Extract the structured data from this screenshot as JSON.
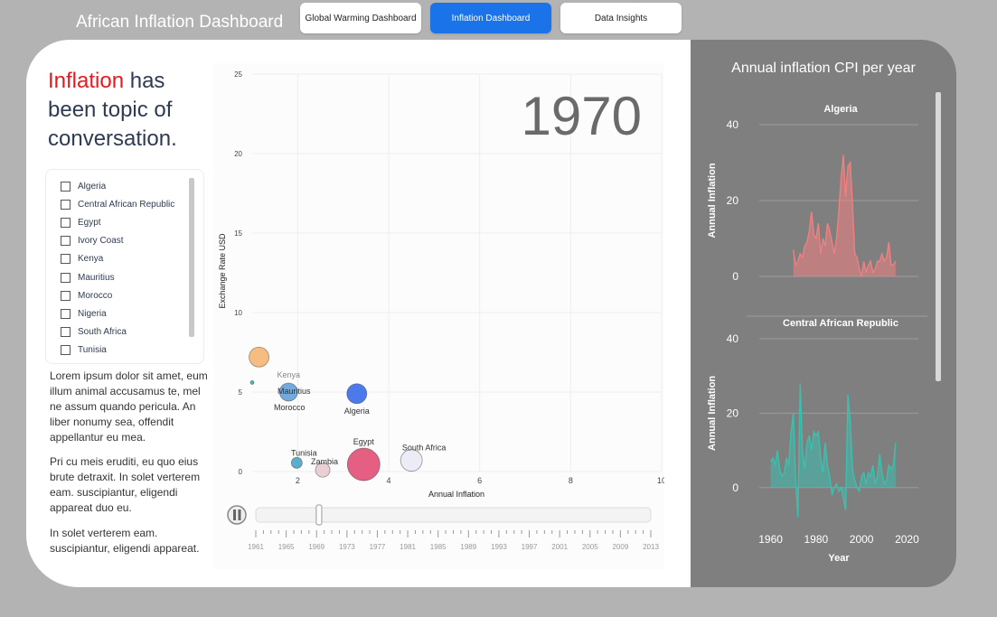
{
  "app_title": "African Inflation Dashboard",
  "nav": [
    {
      "label": "Global Warming Dashboard"
    },
    {
      "label": "Inflation Dashboard"
    },
    {
      "label": "Data Insights"
    }
  ],
  "headline": {
    "highlight": "Inflation",
    "rest": " has been topic of conversation."
  },
  "countries": [
    "Algeria",
    "Central African Republic",
    "Egypt",
    "Ivory Coast",
    "Kenya",
    "Mauritius",
    "Morocco",
    "Nigeria",
    "South Africa",
    "Tunisia"
  ],
  "paragraphs": [
    "Lorem ipsum dolor sit amet, eum illum animal accusamus te, mel ne assum quando pericula. An liber nonumy sea, offendit appellantur eu mea.",
    "Pri cu meis eruditi, eu quo eius brute detraxit. In solet verterem eam. suscipiantur, eligendi appareat duo eu.",
    "In solet verterem eam. suscipiantur, eligendi appareat."
  ],
  "chart_data": [
    {
      "type": "scatter",
      "frame_label": "1970",
      "xlabel": "Annual Inflation",
      "ylabel": "Exchange Rate USD",
      "xlim": [
        1,
        10
      ],
      "ylim": [
        0,
        25
      ],
      "xticks": [
        2,
        4,
        6,
        8,
        10
      ],
      "yticks": [
        0,
        5,
        10,
        15,
        20,
        25
      ],
      "points": [
        {
          "name": "",
          "x": 1.15,
          "y": 7.2,
          "size": 11,
          "color": "#f5b26b"
        },
        {
          "name": "",
          "x": 1.0,
          "y": 5.6,
          "size": 2,
          "color": "#2bb39c"
        },
        {
          "name": "Kenya",
          "x": 1.8,
          "y": 5.0,
          "size": 0,
          "color": "#999999"
        },
        {
          "name": "Mauritius",
          "x": 1.8,
          "y": 5.0,
          "size": 10,
          "color": "#5b9bd5"
        },
        {
          "name": "Morocco",
          "x": 1.8,
          "y": 5.0,
          "size": 0,
          "color": "#4a90d9"
        },
        {
          "name": "Algeria",
          "x": 3.3,
          "y": 4.9,
          "size": 11,
          "color": "#2d63e6"
        },
        {
          "name": "Tunisia",
          "x": 1.98,
          "y": 0.55,
          "size": 6,
          "color": "#3fa0c4"
        },
        {
          "name": "Zambia",
          "x": 2.55,
          "y": 0.1,
          "size": 8,
          "color": "#e4c8cc"
        },
        {
          "name": "Egypt",
          "x": 3.45,
          "y": 0.45,
          "size": 18,
          "color": "#e0436d"
        },
        {
          "name": "South Africa",
          "x": 4.5,
          "y": 0.7,
          "size": 12,
          "color": "#e7e9f3"
        }
      ]
    },
    {
      "type": "area",
      "title": "Algeria",
      "xlabel": "Year",
      "ylabel": "Annual Inflation",
      "xlim": [
        1955,
        2025
      ],
      "ylim": [
        0,
        40
      ],
      "yticks": [
        0,
        20,
        40
      ],
      "color": "#f08080",
      "x": [
        1970,
        1971,
        1972,
        1973,
        1974,
        1975,
        1976,
        1977,
        1978,
        1979,
        1980,
        1981,
        1982,
        1983,
        1984,
        1985,
        1986,
        1987,
        1988,
        1989,
        1990,
        1991,
        1992,
        1993,
        1994,
        1995,
        1996,
        1997,
        1998,
        1999,
        2000,
        2001,
        2002,
        2003,
        2004,
        2005,
        2006,
        2007,
        2008,
        2009,
        2010,
        2011,
        2012,
        2013,
        2014,
        2015
      ],
      "values": [
        7,
        3,
        4,
        6,
        5,
        8,
        9,
        12,
        17,
        11,
        10,
        14,
        6,
        10,
        8,
        14,
        12,
        9,
        6,
        10,
        17,
        26,
        32,
        21,
        29,
        30,
        19,
        6,
        5,
        2,
        0,
        4,
        1,
        3,
        4,
        1,
        2,
        4,
        4,
        6,
        4,
        5,
        9,
        3,
        3,
        4
      ]
    },
    {
      "type": "area",
      "title": "Central African Republic",
      "xlabel": "Year",
      "ylabel": "Annual Inflation",
      "xlim": [
        1955,
        2025
      ],
      "ylim": [
        -10,
        40
      ],
      "yticks": [
        0,
        20,
        40
      ],
      "xticks": [
        1960,
        1980,
        2000,
        2020
      ],
      "color": "#3dbfae",
      "x": [
        1960,
        1961,
        1962,
        1963,
        1964,
        1965,
        1966,
        1967,
        1968,
        1969,
        1970,
        1971,
        1972,
        1973,
        1974,
        1975,
        1976,
        1977,
        1978,
        1979,
        1980,
        1981,
        1982,
        1983,
        1984,
        1985,
        1986,
        1987,
        1988,
        1989,
        1990,
        1991,
        1992,
        1993,
        1994,
        1995,
        1996,
        1997,
        1998,
        1999,
        2000,
        2001,
        2002,
        2003,
        2004,
        2005,
        2006,
        2007,
        2008,
        2009,
        2010,
        2011,
        2012,
        2013,
        2014,
        2015
      ],
      "values": [
        7,
        8,
        6,
        10,
        5,
        3,
        4,
        8,
        6,
        15,
        20,
        2,
        -8,
        28,
        10,
        5,
        12,
        14,
        10,
        15,
        14,
        15,
        8,
        4,
        12,
        6,
        3,
        -2,
        0,
        1,
        -1,
        0,
        -3,
        -6,
        25,
        18,
        5,
        2,
        0,
        -1,
        3,
        4,
        1,
        4,
        3,
        6,
        1,
        3,
        9,
        4,
        1,
        2,
        6,
        5,
        6,
        12
      ]
    }
  ],
  "right_panel_title": "Annual inflation CPI per year",
  "timeline": {
    "current_fraction": 0.16,
    "labels": [
      "1961",
      "1965",
      "1969",
      "1973",
      "1977",
      "1981",
      "1985",
      "1989",
      "1993",
      "1997",
      "2001",
      "2005",
      "2009",
      "2013"
    ]
  }
}
